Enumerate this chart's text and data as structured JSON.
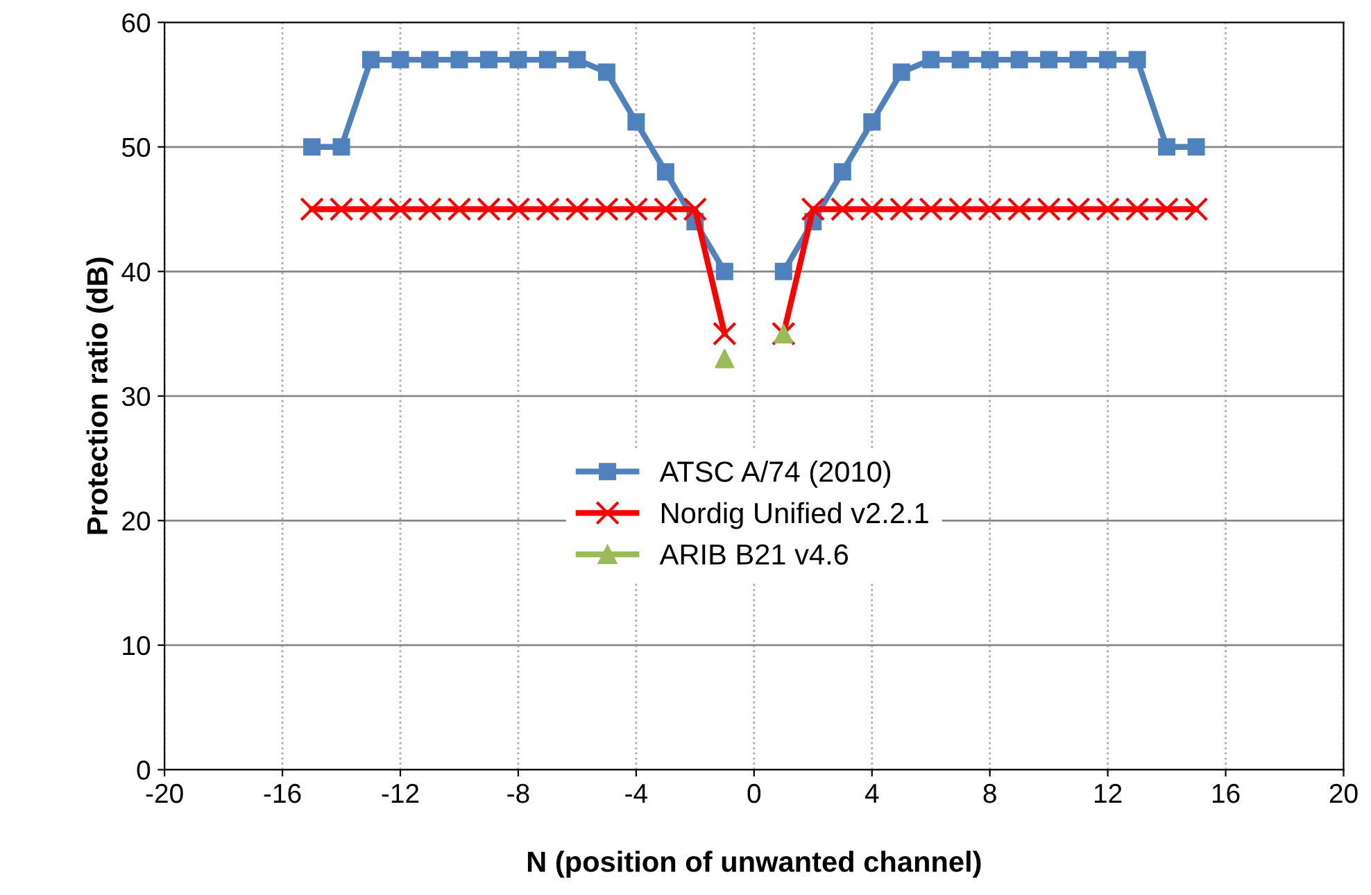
{
  "chart_data": {
    "type": "line",
    "xlabel": "N (position of unwanted channel)",
    "ylabel": "Protection ratio (dB)",
    "x": [
      -15,
      -14,
      -13,
      -12,
      -11,
      -10,
      -9,
      -8,
      -7,
      -6,
      -5,
      -4,
      -3,
      -2,
      -1,
      0,
      1,
      2,
      3,
      4,
      5,
      6,
      7,
      8,
      9,
      10,
      11,
      12,
      13,
      14,
      15
    ],
    "series": [
      {
        "name": "ATSC A/74 (2010)",
        "color": "#4f81bd",
        "marker": "square",
        "values": [
          50,
          50,
          57,
          57,
          57,
          57,
          57,
          57,
          57,
          57,
          56,
          52,
          48,
          44,
          40,
          null,
          40,
          44,
          48,
          52,
          56,
          57,
          57,
          57,
          57,
          57,
          57,
          57,
          57,
          50,
          50
        ]
      },
      {
        "name": "Nordig Unified v2.2.1",
        "color": "#ff0000",
        "marker": "cross",
        "values": [
          45,
          45,
          45,
          45,
          45,
          45,
          45,
          45,
          45,
          45,
          45,
          45,
          45,
          45,
          35,
          null,
          35,
          45,
          45,
          45,
          45,
          45,
          45,
          45,
          45,
          45,
          45,
          45,
          45,
          45,
          45
        ]
      },
      {
        "name": "ARIB B21 v4.6",
        "type": "scatter",
        "color": "#9bbb59",
        "marker": "triangle",
        "x": [
          -1,
          1
        ],
        "values": [
          33,
          35
        ]
      }
    ],
    "xlim": [
      -20,
      20
    ],
    "xticks": [
      -20,
      -16,
      -12,
      -8,
      -4,
      0,
      4,
      8,
      12,
      16,
      20
    ],
    "ylim": [
      0,
      60
    ],
    "yticks": [
      0,
      10,
      20,
      30,
      40,
      50,
      60
    ],
    "grid": true,
    "legend": "center",
    "line_style": "solid"
  }
}
